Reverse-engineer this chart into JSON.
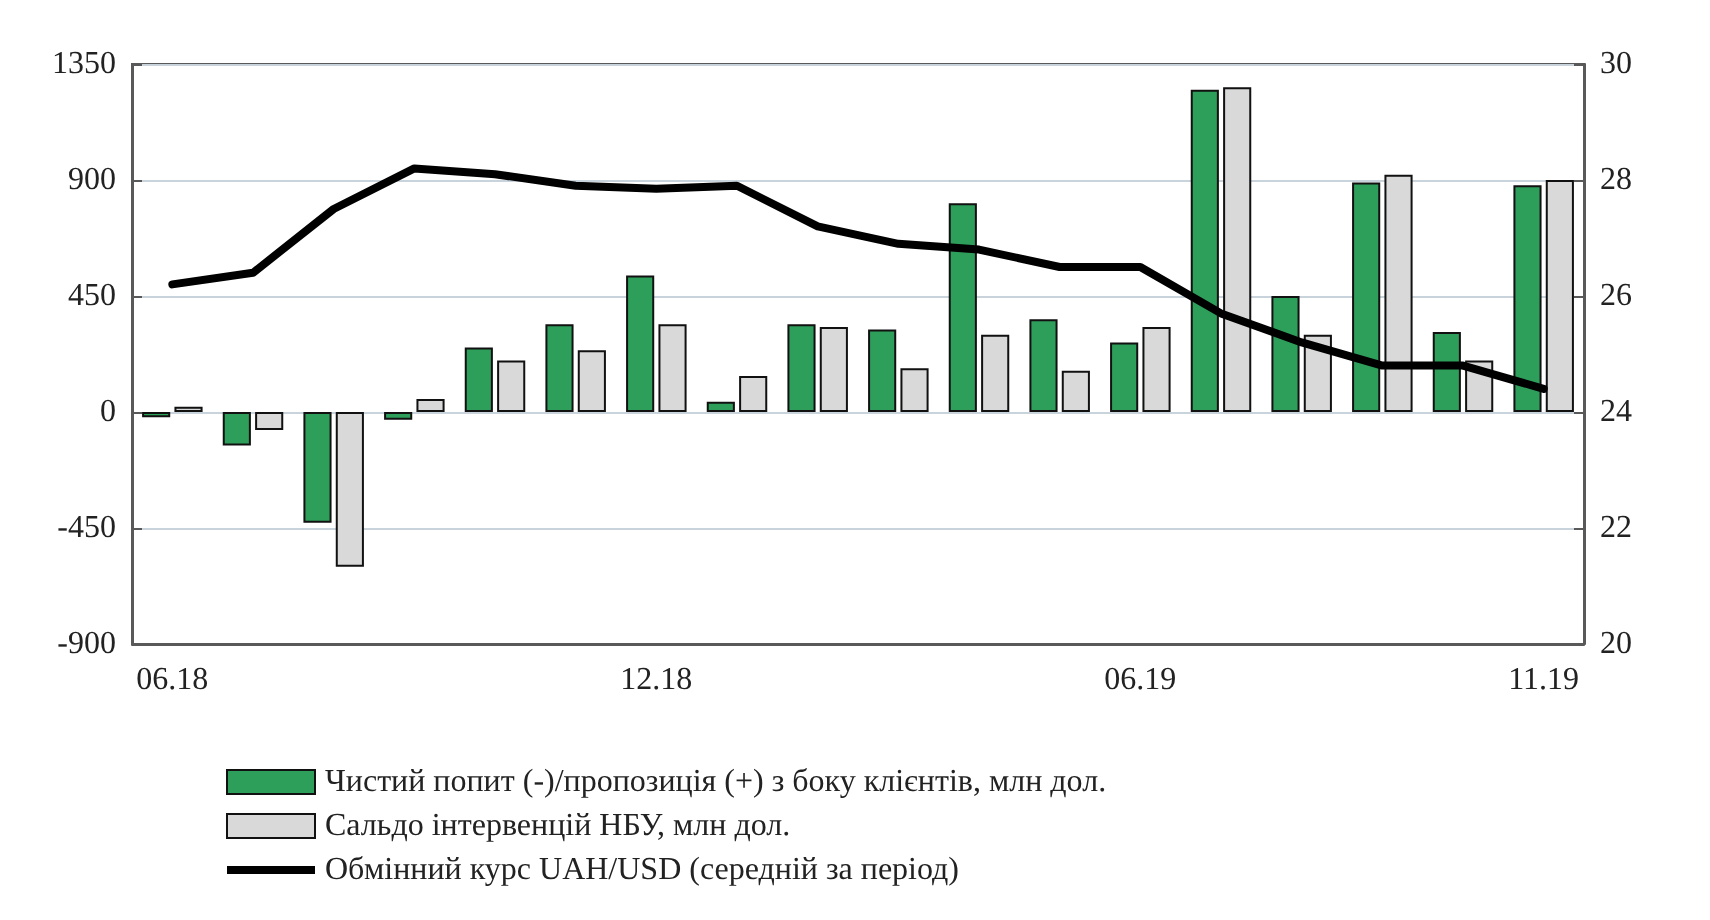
{
  "chart_data": {
    "type": "bar",
    "categories": [
      "06.18",
      null,
      null,
      null,
      null,
      null,
      "12.18",
      null,
      null,
      null,
      null,
      null,
      "06.19",
      null,
      null,
      null,
      null,
      "11.19"
    ],
    "series": [
      {
        "name": "Чистий попит (-)/пропозиція (+) з боку клієнтів, млн дол.",
        "color": "#2e9e5b",
        "values": [
          -20,
          -130,
          -430,
          -30,
          250,
          340,
          530,
          40,
          340,
          320,
          810,
          360,
          270,
          1250,
          450,
          890,
          310,
          880
        ]
      },
      {
        "name": "Сальдо інтервенцій НБУ, млн дол.",
        "color": "#d9d9d9",
        "values": [
          20,
          -70,
          -600,
          50,
          200,
          240,
          340,
          140,
          330,
          170,
          300,
          160,
          330,
          1260,
          300,
          920,
          200,
          900
        ]
      },
      {
        "name": "Обмінний курс UAH/USD (середній за період)",
        "type": "line",
        "axis": "y2",
        "color": "#000000",
        "values": [
          26.2,
          26.4,
          27.5,
          28.2,
          28.1,
          27.9,
          27.85,
          27.9,
          27.2,
          26.9,
          26.8,
          26.5,
          26.5,
          25.7,
          25.2,
          24.8,
          24.8,
          24.4
        ]
      }
    ],
    "ylim": [
      -900,
      1350
    ],
    "yticks": [
      -900,
      -450,
      0,
      450,
      900,
      1350
    ],
    "y2lim": [
      20,
      30
    ],
    "y2ticks": [
      20,
      22,
      24,
      26,
      28,
      30
    ],
    "grid": "y",
    "legend": "bottom",
    "marker": "none",
    "line_style": "solid"
  }
}
